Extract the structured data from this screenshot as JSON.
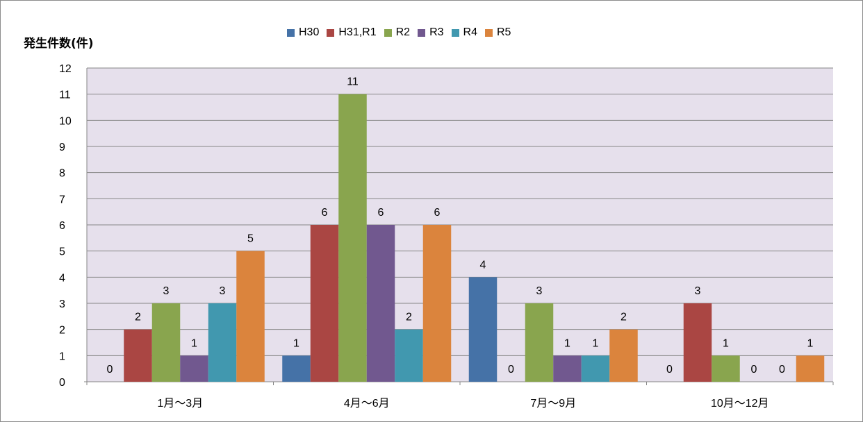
{
  "chart_data": {
    "type": "bar",
    "ylabel": "発生件数(件)",
    "xlabel": "",
    "categories": [
      "1月～3月",
      "4月～6月",
      "7月～9月",
      "10月～12月"
    ],
    "series": [
      {
        "name": "H30",
        "color": "#4572a7",
        "values": [
          0,
          1,
          4,
          0
        ]
      },
      {
        "name": "H31,R1",
        "color": "#aa4643",
        "values": [
          2,
          6,
          0,
          3
        ]
      },
      {
        "name": "R2",
        "color": "#89a54e",
        "values": [
          3,
          11,
          3,
          1
        ]
      },
      {
        "name": "R3",
        "color": "#71588f",
        "values": [
          1,
          6,
          1,
          0
        ]
      },
      {
        "name": "R4",
        "color": "#4198af",
        "values": [
          3,
          2,
          1,
          0
        ]
      },
      {
        "name": "R5",
        "color": "#db843d",
        "values": [
          5,
          6,
          2,
          1
        ]
      }
    ],
    "ylim": [
      0,
      12
    ],
    "yticks": [
      "0",
      "1",
      "2",
      "3",
      "4",
      "5",
      "6",
      "7",
      "8",
      "9",
      "10",
      "11",
      "12"
    ],
    "grid": true,
    "plot_background": "#e6e0ec",
    "legend_position": "top"
  }
}
